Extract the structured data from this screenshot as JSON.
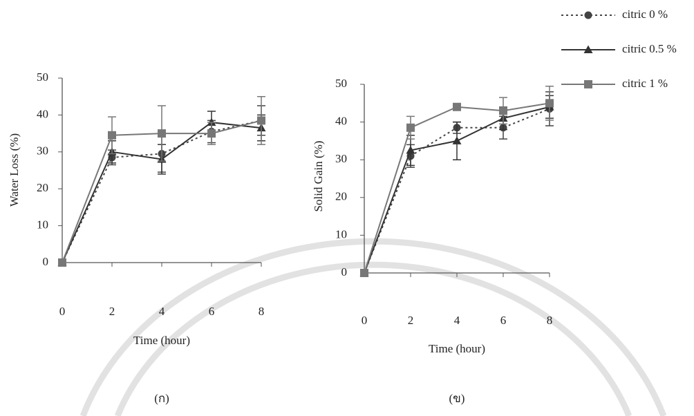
{
  "chart_data": [
    {
      "type": "line",
      "y_label": "Water Loss (%)",
      "x_label": "Time (hour)",
      "caption": "(ก)",
      "x": [
        0,
        2,
        4,
        6,
        8
      ],
      "xlim": [
        0,
        8
      ],
      "xticks": [
        0,
        2,
        4,
        6,
        8
      ],
      "ylim": [
        0,
        50
      ],
      "yticks": [
        0,
        10,
        20,
        30,
        40,
        50
      ],
      "series": [
        {
          "name": "citric 0 %",
          "color": "#444",
          "line_style": "dotted",
          "marker": "circle",
          "values": [
            0,
            28.5,
            29.5,
            35.5,
            38.5
          ],
          "errors": [
            0,
            2,
            5,
            3,
            4
          ]
        },
        {
          "name": "citric 0.5 %",
          "color": "#333",
          "line_style": "solid",
          "marker": "triangle",
          "values": [
            0,
            30,
            28,
            38,
            36.5
          ],
          "errors": [
            0,
            3,
            4,
            3,
            3.5
          ]
        },
        {
          "name": "citric 1 %",
          "color": "#777",
          "line_style": "solid",
          "marker": "square",
          "values": [
            0,
            34.5,
            35,
            35,
            38.5
          ],
          "errors": [
            0,
            5,
            7.5,
            3,
            6.5
          ]
        }
      ]
    },
    {
      "type": "line",
      "y_label": "Solid Gain (%)",
      "x_label": "Time (hour)",
      "caption": "(ข)",
      "x": [
        0,
        2,
        4,
        6,
        8
      ],
      "xlim": [
        0,
        8
      ],
      "xticks": [
        0,
        2,
        4,
        6,
        8
      ],
      "ylim": [
        0,
        50
      ],
      "yticks": [
        0,
        10,
        20,
        30,
        40,
        50
      ],
      "series": [
        {
          "color": "#444",
          "line_style": "dotted",
          "marker": "circle",
          "values": [
            0,
            31,
            38.5,
            38.5,
            43.5
          ],
          "errors": [
            0,
            3,
            1.5,
            3,
            4.5
          ]
        },
        {
          "color": "#333",
          "line_style": "solid",
          "marker": "triangle",
          "values": [
            0,
            32.5,
            35,
            41,
            44
          ],
          "errors": [
            0,
            4,
            5,
            3,
            3
          ]
        },
        {
          "color": "#777",
          "line_style": "solid",
          "marker": "square",
          "values": [
            0,
            38.5,
            44,
            43,
            45
          ],
          "errors": [
            0,
            3,
            0.5,
            3.5,
            4.5
          ]
        }
      ]
    }
  ]
}
